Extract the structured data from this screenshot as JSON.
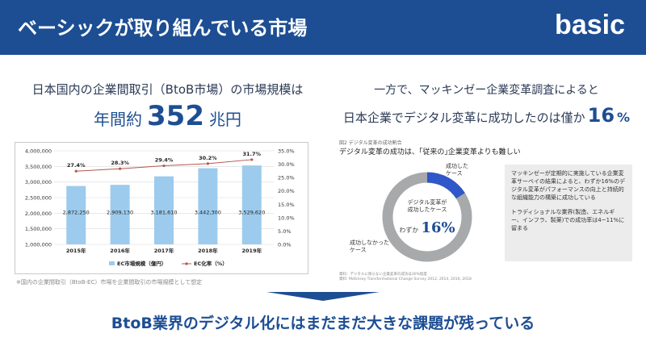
{
  "header": {
    "title": "ベーシックが取り組んでいる市場",
    "logo": "basic"
  },
  "left": {
    "line1": "日本国内の企業間取引（BtoB市場）の市場規模は",
    "big_prefix": "年間約",
    "big_number": "352",
    "big_suffix": "兆円",
    "note": "※国内の企業間取引（BtoB-EC）市場を企業間取引の市場規模として想定"
  },
  "chart_data": {
    "type": "bar",
    "categories": [
      "2015年",
      "2016年",
      "2017年",
      "2018年",
      "2019年"
    ],
    "series": [
      {
        "name": "EC市場規模（億円）",
        "values": [
          2872250,
          2909130,
          3181610,
          3442300,
          3529620
        ],
        "labels": [
          "2,872,250",
          "2,909,130",
          "3,181,610",
          "3,442,300",
          "3,529,620"
        ],
        "color": "#9ccbed"
      },
      {
        "name": "EC化率（%）",
        "values": [
          27.4,
          28.3,
          29.4,
          30.2,
          31.7
        ],
        "labels": [
          "27.4%",
          "28.3%",
          "29.4%",
          "30.2%",
          "31.7%"
        ],
        "color": "#b5554f",
        "axis": "right"
      }
    ],
    "ylim": [
      1000000,
      4000000
    ],
    "yticks": [
      "1,000,000",
      "1,500,000",
      "2,000,000",
      "2,500,000",
      "3,000,000",
      "3,500,000",
      "4,000,000"
    ],
    "y2lim": [
      0,
      35
    ],
    "y2ticks": [
      "0.0%",
      "5.0%",
      "10.0%",
      "15.0%",
      "20.0%",
      "25.0%",
      "30.0%",
      "35.0%"
    ],
    "grid": true,
    "legend": "bottom"
  },
  "right": {
    "line1": "一方で、マッキンゼー企業変革調査によると",
    "line2": "日本企業でデジタル変革に成功したのは僅か",
    "pct_number": "16",
    "pct_unit": "%",
    "survey_title": "図2 デジタル変革の成功割合",
    "survey_subtitle": "デジタル変革の成功は、｢従来の｣企業変革よりも難しい",
    "donut": {
      "success_pct": 16,
      "success_label_1": "成功した",
      "success_label_2": "ケース",
      "fail_label_1": "成功しなかった",
      "fail_label_2": "ケース",
      "center_1": "デジタル変革が",
      "center_2": "成功したケース",
      "center_prefix": "わずか",
      "center_value": "16%",
      "success_color": "#2f57c9",
      "fail_color": "#a7a9ab"
    },
    "source_1": "資料：デジタルに限らない企業変革の成功は30%程度",
    "source_2": "資料: McKinsey Transformational Change Survey 2012, 2014, 2016, 2018",
    "box_p1": "マッキンゼーが定期的に実施している企業変革サーベイの結果によると、わずか16%のデジタル変革がパフォーマンスの向上と持続的な組織能力の構築に成功している",
    "box_p2": "トラディショナルな業界(製造、エネルギー、インフラ、製薬)での成功率は4~11%に留まる"
  },
  "bottom": {
    "text": "BtoB業界のデジタル化にはまだまだ大きな課題が残っている"
  }
}
